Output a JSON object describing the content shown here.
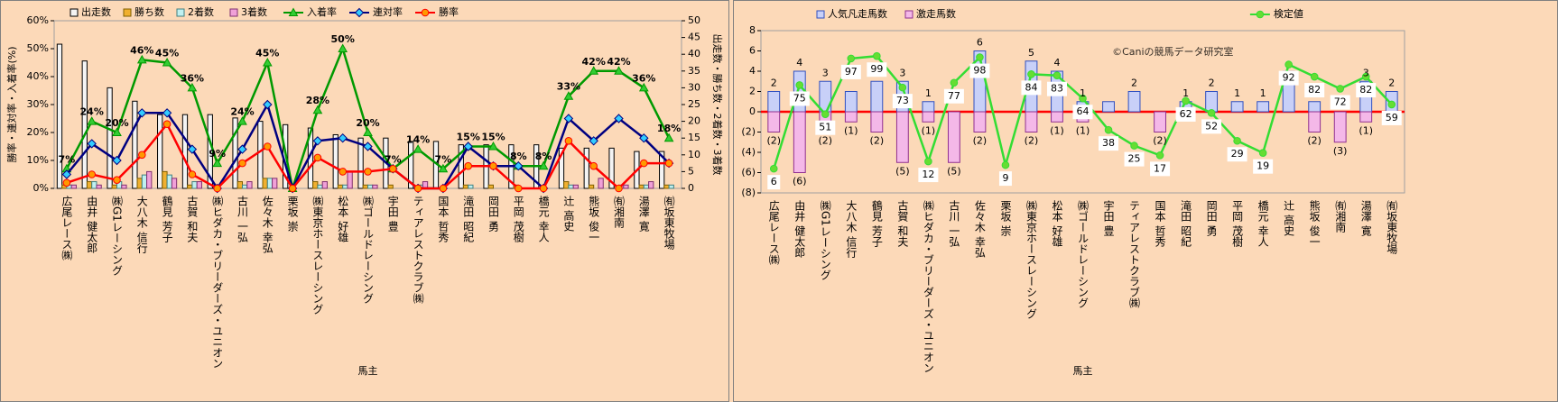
{
  "chart_data": [
    {
      "type": "bar",
      "bar_layout": "grouped",
      "background": "#fcd9b8",
      "ylabel": "勝率・連対率・入着率(%)",
      "y2label": "出走数・勝ち数・2着数・3着数",
      "xlabel": "馬主",
      "categories": [
        "広尾レース㈱",
        "由井 健太郎",
        "㈱G1レーシング",
        "大八木 信行",
        "鶴見 芳子",
        "古賀 和夫",
        "㈱ヒダカ・ブリーダーズ・ユニオン",
        "古川 一弘",
        "佐々木 幸弘",
        "栗坂 崇",
        "㈱東京ホースレーシング",
        "松本 好雄",
        "㈱ゴールドレーシング",
        "宇田 豊",
        "ティアレストクラブ㈱",
        "国本 哲秀",
        "滝田 昭紀",
        "岡田 勇",
        "平岡 茂樹",
        "橋元 幸人",
        "辻 高史",
        "熊坂 俊一",
        "㈲湘南",
        "湯澤 寛",
        "㈲坂東牧場"
      ],
      "ylim": [
        0,
        60
      ],
      "yticks": [
        {
          "value": 0,
          "label": "0%"
        },
        {
          "value": 10,
          "label": "10%"
        },
        {
          "value": 20,
          "label": "20%"
        },
        {
          "value": 30,
          "label": "30%"
        },
        {
          "value": 40,
          "label": "40%"
        },
        {
          "value": 50,
          "label": "50%"
        },
        {
          "value": 60,
          "label": "60%"
        }
      ],
      "y2lim": [
        0,
        50
      ],
      "y2ticks": [
        0,
        5,
        10,
        15,
        20,
        25,
        30,
        35,
        40,
        45,
        50
      ],
      "series": [
        {
          "name": "出走数",
          "type": "bar",
          "axis": "y2",
          "color": "#f4f4f4",
          "stroke": "#000000",
          "values": [
            43,
            38,
            30,
            26,
            22,
            22,
            22,
            21,
            20,
            19,
            18,
            16,
            15,
            15,
            14,
            14,
            13,
            13,
            13,
            13,
            12,
            12,
            12,
            11,
            11
          ]
        },
        {
          "name": "勝ち数",
          "type": "bar",
          "axis": "y2",
          "color": "#f0b030",
          "stroke": "#806000",
          "values": [
            1,
            2,
            1,
            3,
            5,
            1,
            0,
            2,
            3,
            0,
            2,
            1,
            1,
            1,
            0,
            0,
            1,
            1,
            1,
            0,
            2,
            1,
            0,
            1,
            1
          ]
        },
        {
          "name": "2着数",
          "type": "bar",
          "axis": "y2",
          "color": "#c0f0f0",
          "stroke": "#408080",
          "values": [
            1,
            2,
            2,
            4,
            4,
            2,
            0,
            1,
            3,
            0,
            1,
            1,
            1,
            0,
            1,
            0,
            1,
            0,
            0,
            0,
            1,
            0,
            1,
            1,
            1
          ]
        },
        {
          "name": "3着数",
          "type": "bar",
          "axis": "y2",
          "color": "#f0a0d8",
          "stroke": "#803070",
          "values": [
            1,
            1,
            1,
            5,
            3,
            2,
            0,
            2,
            3,
            0,
            2,
            5,
            1,
            0,
            2,
            0,
            0,
            0,
            0,
            0,
            1,
            3,
            1,
            2,
            0
          ]
        },
        {
          "name": "入着率",
          "type": "line",
          "color": "#009900",
          "marker": "triangle",
          "marker_color": "#33cc33",
          "label_position": "above",
          "values": [
            7,
            24,
            20,
            46,
            45,
            36,
            9,
            24,
            45,
            0,
            28,
            50,
            20,
            7,
            14,
            7,
            15,
            15,
            8,
            8,
            33,
            42,
            42,
            36,
            18
          ],
          "value_labels": [
            "7%",
            "24%",
            "20%",
            "46%",
            "45%",
            "36%",
            "9%",
            "24%",
            "45%",
            null,
            "28%",
            "50%",
            "20%",
            "7%",
            "14%",
            "7%",
            "15%",
            "15%",
            "8%",
            "8%",
            "33%",
            "42%",
            "42%",
            "36%",
            "18%"
          ]
        },
        {
          "name": "連対率",
          "type": "line",
          "color": "#000080",
          "marker": "diamond",
          "marker_color": "#33ccff",
          "values": [
            5,
            16,
            10,
            27,
            27,
            14,
            0,
            14,
            30,
            0,
            17,
            18,
            15,
            7,
            0,
            0,
            15,
            8,
            8,
            0,
            25,
            17,
            25,
            18,
            9
          ]
        },
        {
          "name": "勝率",
          "type": "line",
          "color": "#ff0000",
          "marker": "circle",
          "marker_color": "#ff9900",
          "values": [
            2,
            5,
            3,
            12,
            23,
            5,
            0,
            9,
            15,
            0,
            11,
            6,
            6,
            7,
            0,
            0,
            8,
            8,
            0,
            0,
            17,
            8,
            0,
            9,
            9
          ]
        }
      ]
    },
    {
      "type": "bar",
      "bar_layout": "overlay",
      "background": "#fcd9b8",
      "zero_line_color": "#ff0000",
      "xlabel": "馬主",
      "annotation": "©Caniの競馬データ研究室",
      "categories": [
        "広尾レース㈱",
        "由井 健太郎",
        "㈱G1レーシング",
        "大八木 信行",
        "鶴見 芳子",
        "古賀 和夫",
        "㈱ヒダカ・ブリーダーズ・ユニオン",
        "古川 一弘",
        "佐々木 幸弘",
        "栗坂 崇",
        "㈱東京ホースレーシング",
        "松本 好雄",
        "㈱ゴールドレーシング",
        "宇田 豊",
        "ティアレストクラブ㈱",
        "国本 哲秀",
        "滝田 昭紀",
        "岡田 勇",
        "平岡 茂樹",
        "橋元 幸人",
        "辻 高史",
        "熊坂 俊一",
        "㈲湘南",
        "湯澤 寛",
        "㈲坂東牧場"
      ],
      "ylim": [
        -8,
        8
      ],
      "yticks": [
        {
          "value": -8,
          "label": "(8)"
        },
        {
          "value": -6,
          "label": "(6)"
        },
        {
          "value": -4,
          "label": "(4)"
        },
        {
          "value": -2,
          "label": "(2)"
        },
        0,
        2,
        4,
        6,
        8
      ],
      "y2lim": [
        -14,
        120
      ],
      "series": [
        {
          "name": "人気凡走馬数",
          "type": "bar",
          "color": "#c8d0f8",
          "stroke": "#3050c0",
          "label_position": "above",
          "values": [
            2,
            4,
            3,
            2,
            3,
            3,
            1,
            0,
            6,
            0,
            5,
            4,
            1,
            1,
            2,
            0,
            1,
            2,
            1,
            1,
            4,
            1,
            0,
            3,
            2
          ],
          "value_labels": [
            "2",
            "4",
            "3",
            null,
            null,
            "3",
            "1",
            null,
            "6",
            null,
            "5",
            "4",
            "1",
            null,
            "2",
            null,
            "1",
            "2",
            "1",
            "1",
            null,
            null,
            null,
            "3",
            "2"
          ]
        },
        {
          "name": "激走馬数",
          "type": "bar",
          "color": "#f4b8e8",
          "stroke": "#903090",
          "label_position": "below",
          "label_color": "#ff0000",
          "values": [
            -2,
            -6,
            -2,
            -1,
            -2,
            -5,
            -1,
            -5,
            -2,
            0,
            -2,
            -1,
            -1,
            0,
            0,
            -2,
            0,
            0,
            0,
            0,
            0,
            -2,
            -3,
            -1,
            0
          ],
          "value_labels": [
            "(2)",
            "(6)",
            "(2)",
            "(1)",
            "(2)",
            "(5)",
            "(1)",
            "(5)",
            "(2)",
            null,
            "(2)",
            "(1)",
            "(1)",
            null,
            null,
            "(2)",
            null,
            null,
            null,
            null,
            null,
            "(2)",
            "(3)",
            "(1)",
            null
          ]
        },
        {
          "name": "検定値",
          "type": "line",
          "axis": "y2",
          "color": "#33dd33",
          "marker": "circle",
          "marker_color": "#66dd33",
          "label_position": "below",
          "label_color": "#008080",
          "label_box": true,
          "values": [
            6,
            75,
            51,
            97,
            99,
            73,
            12,
            77,
            98,
            9,
            84,
            83,
            64,
            38,
            25,
            17,
            62,
            52,
            29,
            19,
            92,
            82,
            72,
            82,
            59
          ],
          "value_labels": [
            "6",
            "75",
            "51",
            "97",
            "99",
            "73",
            "12",
            "77",
            "98",
            "9",
            "84",
            "83",
            "64",
            "38",
            "25",
            "17",
            "62",
            "52",
            "29",
            "19",
            "92",
            "82",
            "72",
            "82",
            "59"
          ]
        }
      ]
    }
  ]
}
